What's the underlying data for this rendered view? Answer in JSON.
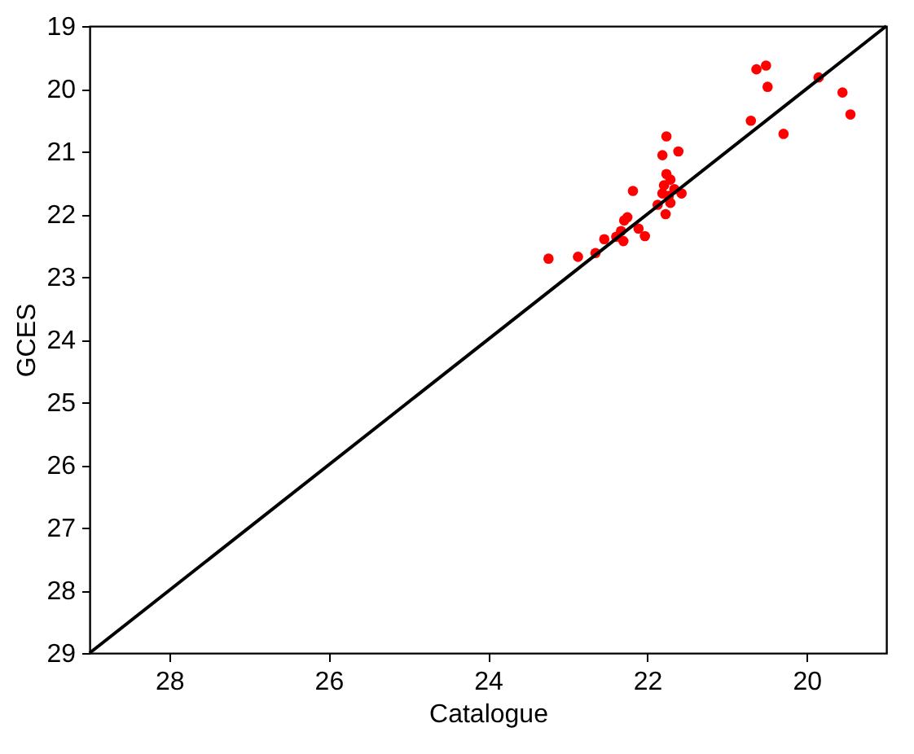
{
  "chart_data": {
    "type": "scatter",
    "xlabel": "Catalogue",
    "ylabel": "GCES",
    "xlim": [
      29,
      19
    ],
    "ylim": [
      29,
      19
    ],
    "xticks": [
      28,
      26,
      24,
      22,
      20
    ],
    "yticks": [
      19,
      20,
      21,
      22,
      23,
      24,
      25,
      26,
      27,
      28,
      29
    ],
    "grid": false,
    "series": [
      {
        "type": "scatter",
        "color": "#ff0000",
        "marker": "circle",
        "x": [
          23.24,
          22.87,
          22.65,
          22.54,
          22.39,
          22.33,
          22.3,
          22.29,
          22.25,
          22.18,
          22.11,
          22.03,
          21.87,
          21.81,
          21.76,
          21.77,
          21.76,
          21.79,
          21.81,
          21.71,
          21.73,
          21.71,
          21.66,
          21.61,
          21.57,
          20.7,
          20.63,
          20.51,
          20.49,
          20.29,
          19.85,
          19.55,
          19.45
        ],
        "values": [
          22.71,
          22.68,
          22.62,
          22.4,
          22.36,
          22.27,
          22.43,
          22.1,
          22.05,
          21.63,
          22.23,
          22.35,
          21.85,
          21.06,
          20.76,
          22.0,
          21.36,
          21.54,
          21.67,
          21.45,
          21.71,
          21.82,
          21.6,
          21.0,
          21.67,
          20.51,
          19.69,
          19.63,
          19.97,
          20.72,
          19.82,
          20.06,
          20.41
        ]
      },
      {
        "type": "line",
        "color": "#000000",
        "line_style": "solid",
        "x": [
          29,
          19
        ],
        "values": [
          29,
          19
        ]
      }
    ]
  }
}
